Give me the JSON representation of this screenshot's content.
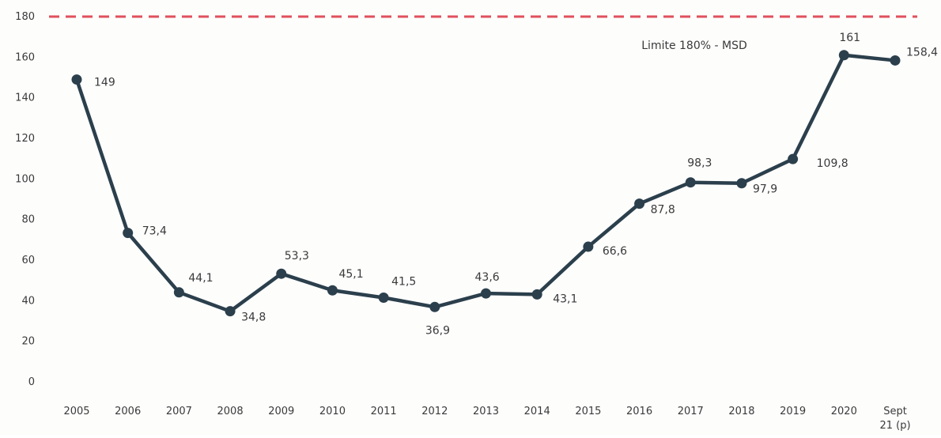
{
  "chart_data": {
    "type": "line",
    "title": "",
    "xlabel": "",
    "ylabel": "",
    "categories": [
      "2005",
      "2006",
      "2007",
      "2008",
      "2009",
      "2010",
      "2011",
      "2012",
      "2013",
      "2014",
      "2015",
      "2016",
      "2017",
      "2018",
      "2019",
      "2020",
      "Sept 21 (p)"
    ],
    "category_lines": [
      [
        "2005"
      ],
      [
        "2006"
      ],
      [
        "2007"
      ],
      [
        "2008"
      ],
      [
        "2009"
      ],
      [
        "2010"
      ],
      [
        "2011"
      ],
      [
        "2012"
      ],
      [
        "2013"
      ],
      [
        "2014"
      ],
      [
        "2015"
      ],
      [
        "2016"
      ],
      [
        "2017"
      ],
      [
        "2018"
      ],
      [
        "2019"
      ],
      [
        "2020"
      ],
      [
        "Sept",
        "21 (p)"
      ]
    ],
    "series": [
      {
        "values": [
          149,
          73.4,
          44.1,
          34.8,
          53.3,
          45.1,
          41.5,
          36.9,
          43.6,
          43.1,
          66.6,
          87.8,
          98.3,
          97.9,
          109.8,
          161,
          158.4
        ],
        "data_labels": [
          "149",
          "73,4",
          "44,1",
          "34,8",
          "53,3",
          "45,1",
          "41,5",
          "36,9",
          "43,6",
          "43,1",
          "66,6",
          "87,8",
          "98,3",
          "97,9",
          "109,8",
          "161",
          "158,4"
        ],
        "color": "#2b3f4c"
      }
    ],
    "ylim": [
      0,
      180
    ],
    "yticks": [
      0,
      20,
      40,
      60,
      80,
      100,
      120,
      140,
      160,
      180
    ],
    "reference_line": {
      "value": 180,
      "label": "Limite 180% - MSD",
      "color": "#e0505c",
      "style": "dashed"
    },
    "grid": false,
    "legend": "none"
  }
}
